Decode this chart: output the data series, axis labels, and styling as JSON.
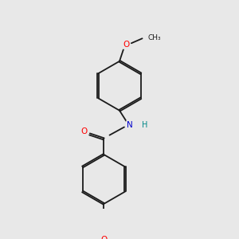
{
  "background_color": "#e8e8e8",
  "bond_color": "#1a1a1a",
  "atom_colors": {
    "O": "#ff0000",
    "N": "#0000cc",
    "Cl": "#00bb00",
    "H": "#008888",
    "C": "#1a1a1a"
  },
  "figsize": [
    3.0,
    3.0
  ],
  "dpi": 100
}
